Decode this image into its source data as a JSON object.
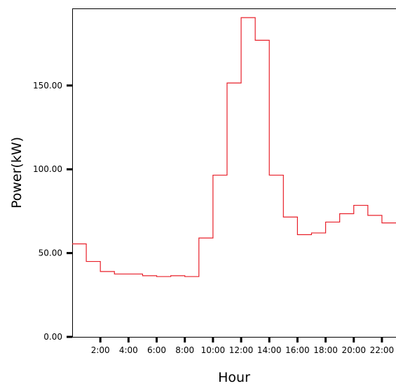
{
  "chart_data": {
    "type": "line",
    "step": true,
    "xlabel": "Hour",
    "ylabel": "Power(kW)",
    "xlim": [
      0,
      23
    ],
    "ylim": [
      0,
      196
    ],
    "y_ticks": [
      {
        "value": 0,
        "label": "0.00"
      },
      {
        "value": 50,
        "label": "50.00"
      },
      {
        "value": 100,
        "label": "100.00"
      },
      {
        "value": 150,
        "label": "150.00"
      }
    ],
    "x_ticks": [
      {
        "value": 2,
        "label": "2:00"
      },
      {
        "value": 4,
        "label": "4:00"
      },
      {
        "value": 6,
        "label": "6:00"
      },
      {
        "value": 8,
        "label": "8:00"
      },
      {
        "value": 10,
        "label": "10:00"
      },
      {
        "value": 12,
        "label": "12:00"
      },
      {
        "value": 14,
        "label": "14:00"
      },
      {
        "value": 16,
        "label": "16:00"
      },
      {
        "value": 18,
        "label": "18:00"
      },
      {
        "value": 20,
        "label": "20:00"
      },
      {
        "value": 22,
        "label": "22:00"
      }
    ],
    "grid": false,
    "series": [
      {
        "color": "#e8202a",
        "x": [
          0,
          1,
          2,
          3,
          4,
          5,
          6,
          7,
          8,
          9,
          10,
          11,
          12,
          13,
          14,
          15,
          16,
          17,
          18,
          19,
          20,
          21,
          22
        ],
        "values": [
          55.5,
          45,
          39,
          37.5,
          37.5,
          36.5,
          36,
          36.5,
          36,
          59,
          96.5,
          151.5,
          190.5,
          177,
          96.5,
          71.5,
          61,
          62,
          68.5,
          73.5,
          78.5,
          72.5,
          68
        ]
      }
    ]
  }
}
